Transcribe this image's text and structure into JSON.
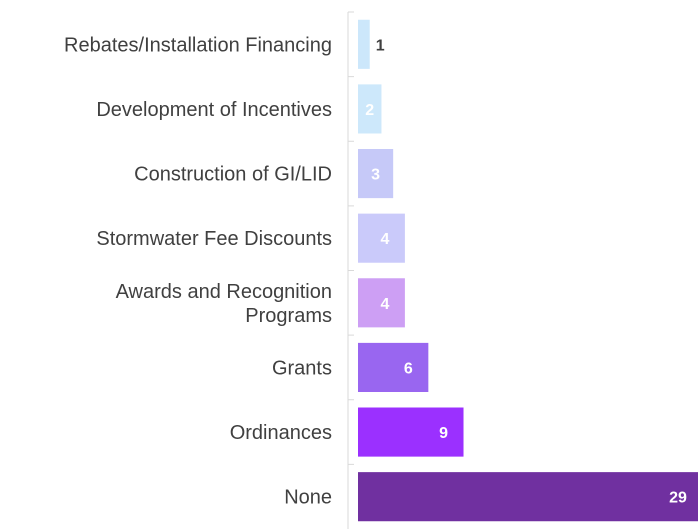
{
  "chart_data": {
    "type": "barh",
    "categories": [
      "Rebates/Installation Financing",
      "Development of Incentives",
      "Construction of GI/LID",
      "Stormwater Fee Discounts",
      "Awards and Recognition\nPrograms",
      "Grants",
      "Ordinances",
      "None"
    ],
    "values": [
      1,
      2,
      3,
      4,
      4,
      6,
      9,
      29
    ],
    "colors": [
      "#cce7fb",
      "#cde8fb",
      "#c6c9f8",
      "#cacafa",
      "#cd9ff4",
      "#9966f0",
      "#9b30ff",
      "#7030a0"
    ]
  }
}
